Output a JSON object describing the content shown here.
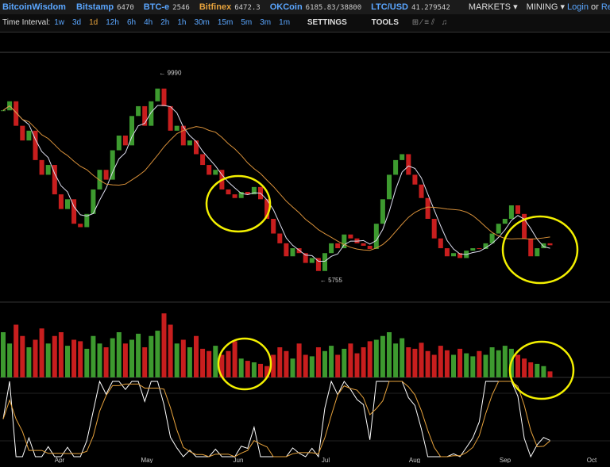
{
  "header": {
    "brand": "BitcoinWisdom",
    "tickers": [
      {
        "name": "Bitstamp",
        "price": "6470"
      },
      {
        "name": "BTC-e",
        "price": "2546"
      },
      {
        "name": "Bitfinex",
        "price": "6472.3"
      },
      {
        "name": "OKCoin",
        "price": "6185.83/38800"
      },
      {
        "name": "LTC/USD",
        "price": "41.279542"
      }
    ],
    "menus": [
      "MARKETS",
      "MINING"
    ],
    "login": "Login",
    "or": "or",
    "register": "Register"
  },
  "toolbar": {
    "label": "Time Interval:",
    "intervals": [
      "1w",
      "3d",
      "1d",
      "12h",
      "6h",
      "4h",
      "2h",
      "1h",
      "30m",
      "15m",
      "5m",
      "3m",
      "1m"
    ],
    "settings": "SETTINGS",
    "tools": "TOOLS"
  },
  "chart_data": {
    "type": "candlestick",
    "closes": [
      9215,
      9400,
      8900,
      8600,
      8800,
      8200,
      7900,
      8100,
      7500,
      7200,
      7400,
      6900,
      6830,
      7100,
      7600,
      8000,
      7800,
      8400,
      8700,
      8500,
      9100,
      9300,
      8900,
      9400,
      9660,
      9300,
      8800,
      8900,
      8500,
      8600,
      8320,
      8100,
      7900,
      8000,
      7600,
      7500,
      7425,
      7550,
      7500,
      7650,
      7400,
      7000,
      6700,
      6500,
      6235,
      6400,
      6300,
      6100,
      6200,
      5935,
      6300,
      6500,
      6400,
      6680,
      6600,
      6500,
      6450,
      6385,
      6900,
      7400,
      7900,
      8200,
      8320,
      7900,
      7700,
      7425,
      7000,
      6600,
      6400,
      6235,
      6300,
      6200,
      6350,
      6400,
      6385,
      6500,
      6700,
      6900,
      7000,
      7275,
      7100,
      6600,
      6235,
      6400,
      6500,
      6460
    ],
    "volumes": [
      60,
      45,
      70,
      55,
      40,
      50,
      65,
      45,
      55,
      60,
      42,
      50,
      48,
      38,
      55,
      45,
      40,
      52,
      60,
      45,
      50,
      58,
      40,
      55,
      62,
      85,
      70,
      45,
      50,
      40,
      55,
      38,
      35,
      42,
      30,
      35,
      48,
      25,
      22,
      20,
      18,
      15,
      30,
      40,
      35,
      25,
      45,
      30,
      28,
      40,
      35,
      42,
      30,
      38,
      45,
      32,
      40,
      48,
      50,
      55,
      60,
      45,
      52,
      40,
      38,
      46,
      35,
      30,
      42,
      36,
      30,
      38,
      32,
      28,
      35,
      30,
      40,
      36,
      42,
      38,
      30,
      25,
      20,
      18,
      15,
      8
    ],
    "ylim": [
      5300,
      10400
    ],
    "vlim": [
      0,
      100
    ],
    "annotations": [
      {
        "label": "← 9990",
        "index": 24,
        "value": 9990
      },
      {
        "label": "← 5755",
        "index": 49,
        "value": 5755
      }
    ],
    "months": [
      "Apr",
      "May",
      "Jun",
      "Jul",
      "Aug",
      "Sep",
      "Oct"
    ],
    "up_color": "#3d9a2f",
    "down_color": "#c81e1e"
  }
}
